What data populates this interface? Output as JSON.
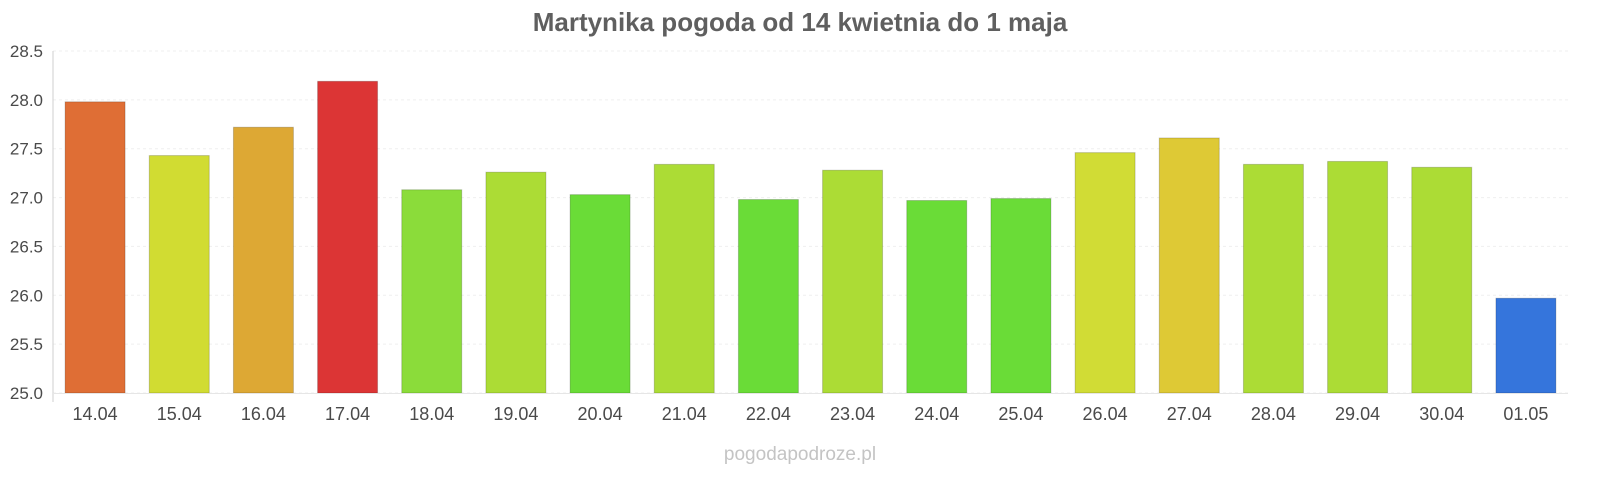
{
  "chart_data": {
    "type": "bar",
    "title": "Martynika pogoda od 14 kwietnia do 1 maja",
    "xlabel": "",
    "ylabel": "",
    "categories": [
      "14.04",
      "15.04",
      "16.04",
      "17.04",
      "18.04",
      "19.04",
      "20.04",
      "21.04",
      "22.04",
      "23.04",
      "24.04",
      "25.04",
      "26.04",
      "27.04",
      "28.04",
      "29.04",
      "30.04",
      "01.05"
    ],
    "values": [
      27.98,
      27.43,
      27.72,
      28.19,
      27.08,
      27.26,
      27.03,
      27.34,
      26.98,
      27.28,
      26.97,
      26.99,
      27.46,
      27.61,
      27.34,
      27.37,
      27.31,
      25.97
    ],
    "colors": [
      "#df6e35",
      "#d1dc32",
      "#dda834",
      "#dc3535",
      "#8bdc3a",
      "#acdc35",
      "#6adc37",
      "#acdc35",
      "#6adc37",
      "#acdc35",
      "#6adc37",
      "#6adc37",
      "#d1dc35",
      "#dec935",
      "#acdc35",
      "#acdc35",
      "#acdc35",
      "#3575dc"
    ],
    "ylim": [
      25.0,
      28.5
    ],
    "yticks": [
      "25.0",
      "25.5",
      "26.0",
      "26.5",
      "27.0",
      "27.5",
      "28.0",
      "28.5"
    ],
    "grid": true,
    "legend": "none"
  },
  "watermark": "pogodapodroze.pl"
}
